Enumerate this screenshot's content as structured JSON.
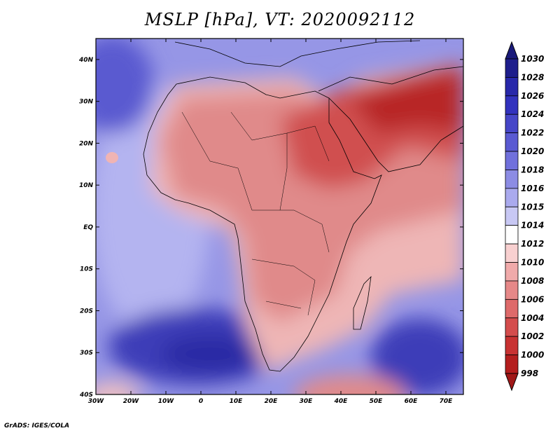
{
  "title": "MSLP [hPa], VT: 2020092112",
  "credit": "GrADS: IGES/COLA",
  "map": {
    "lat_ticks": [
      "40N",
      "30N",
      "20N",
      "10N",
      "EQ",
      "10S",
      "20S",
      "30S",
      "40S"
    ],
    "lon_ticks": [
      "30W",
      "20W",
      "10W",
      "0",
      "10E",
      "20E",
      "30E",
      "40E",
      "50E",
      "60E",
      "70E"
    ]
  },
  "colorbar": {
    "labels": [
      "1030",
      "1028",
      "1026",
      "1024",
      "1022",
      "1020",
      "1018",
      "1016",
      "1015",
      "1014",
      "1012",
      "1010",
      "1008",
      "1006",
      "1004",
      "1002",
      "1000",
      "998"
    ],
    "colors": [
      "#1e1e8c",
      "#2828aa",
      "#3232be",
      "#4646c8",
      "#5a5ad2",
      "#7070dc",
      "#8c8ce4",
      "#aaaaee",
      "#c8c8f4",
      "#ffffff",
      "#f8d0d0",
      "#f0aaaa",
      "#e68888",
      "#de6a6a",
      "#d44c4c",
      "#c83232",
      "#b41e1e"
    ],
    "top_arrow_color": "#1a1a7a",
    "bottom_arrow_color": "#a01818"
  }
}
